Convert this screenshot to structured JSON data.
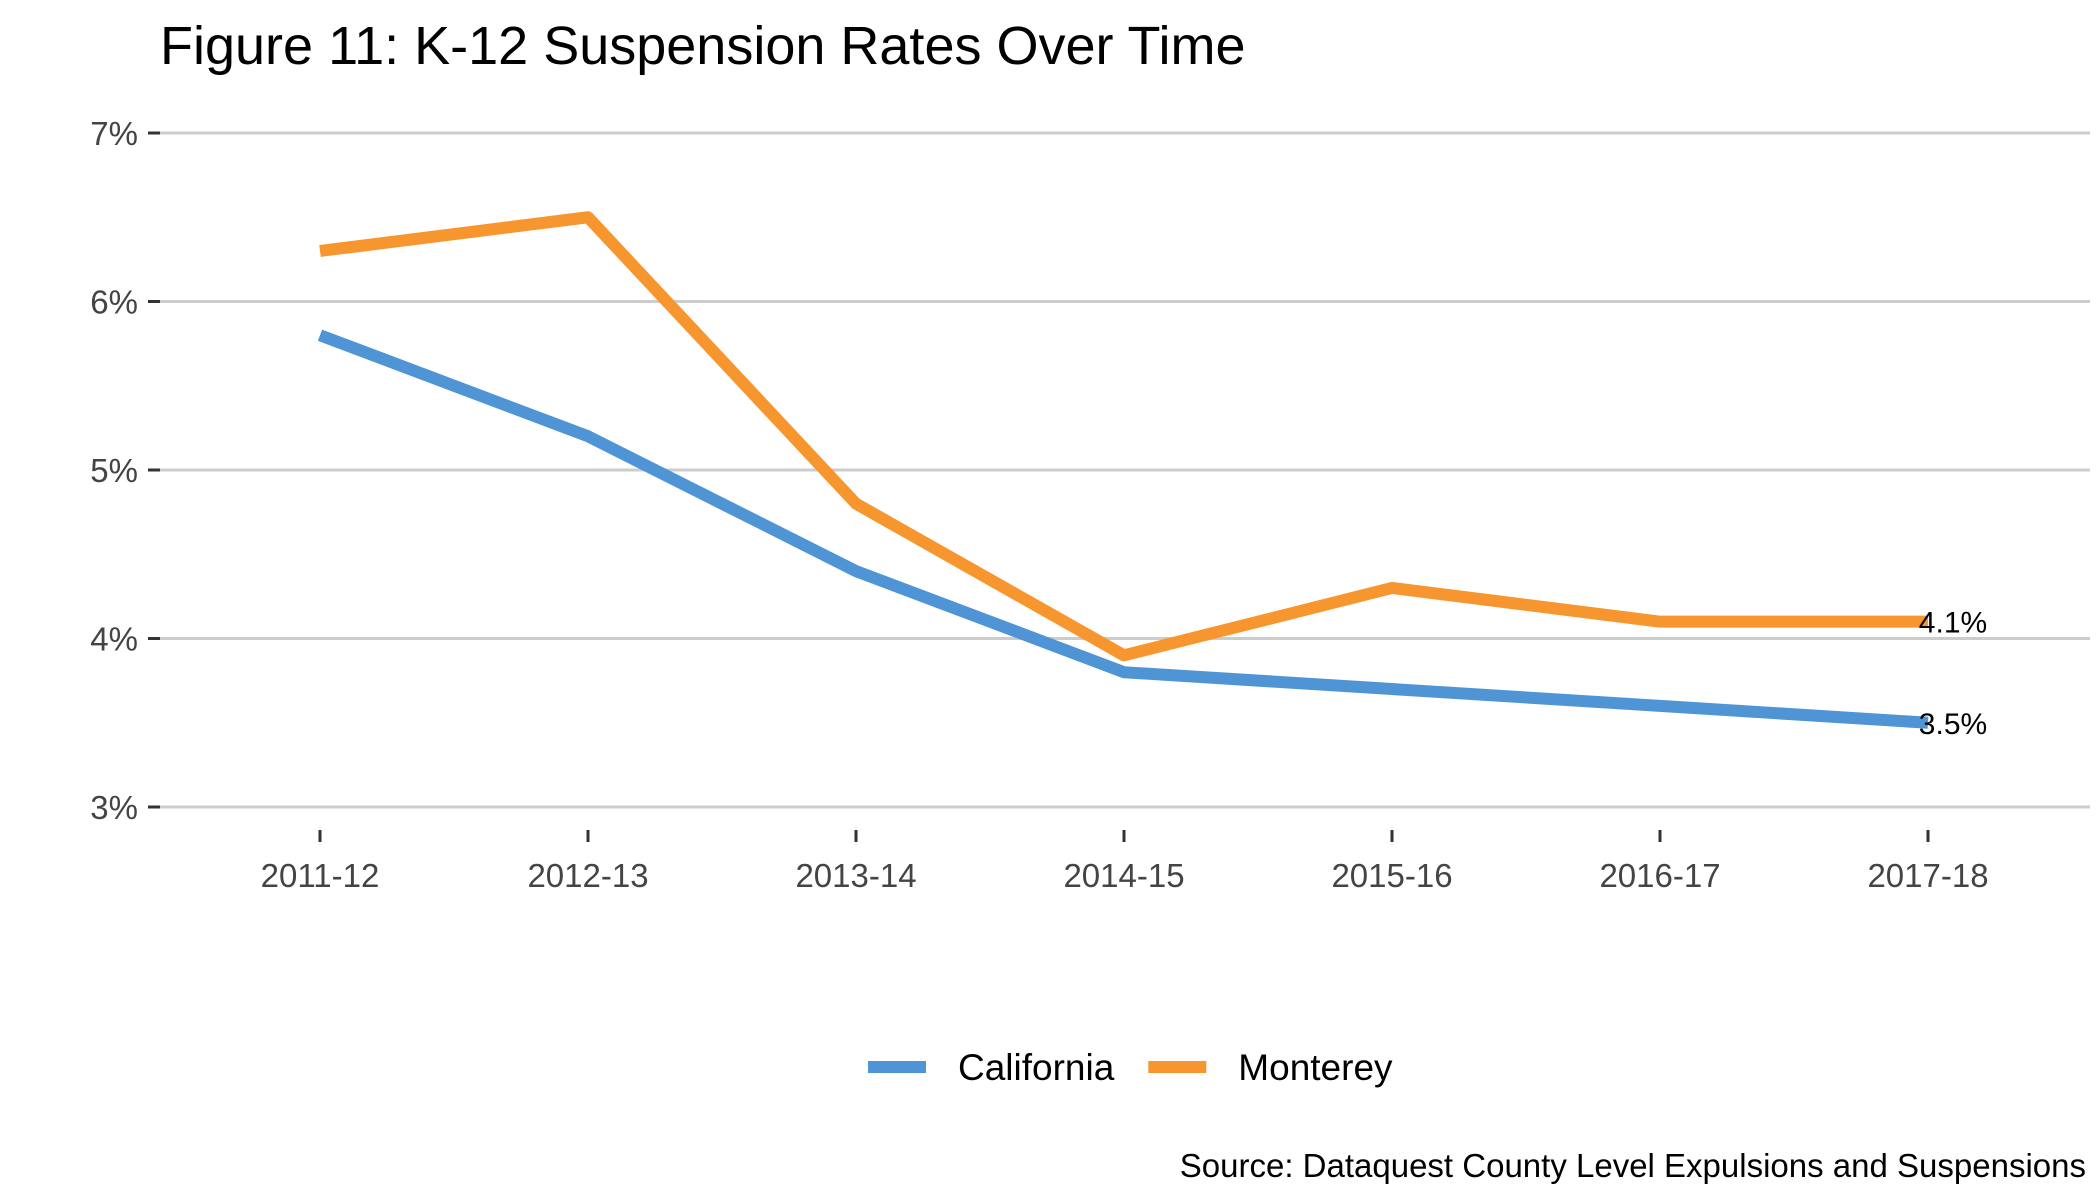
{
  "chart_data": {
    "type": "line",
    "title": "Figure 11: K-12 Suspension Rates Over Time",
    "caption": "Source: Dataquest County Level Expulsions and Suspensions",
    "xlabel": "",
    "ylabel": "",
    "categories": [
      "2011-12",
      "2012-13",
      "2013-14",
      "2014-15",
      "2015-16",
      "2016-17",
      "2017-18"
    ],
    "y_ticks": [
      3,
      4,
      5,
      6,
      7
    ],
    "y_tick_labels": [
      "3%",
      "4%",
      "5%",
      "6%",
      "7%"
    ],
    "ylim": [
      3,
      7
    ],
    "grid": "horizontal",
    "legend_position": "bottom",
    "series": [
      {
        "name": "California",
        "color": "#4F94D4",
        "values": [
          5.8,
          5.2,
          4.4,
          3.8,
          3.7,
          3.6,
          3.5
        ],
        "end_label": "3.5%"
      },
      {
        "name": "Monterey",
        "color": "#F7962F",
        "values": [
          6.3,
          6.5,
          4.8,
          3.9,
          4.3,
          4.1,
          4.1
        ],
        "end_label": "4.1%"
      }
    ]
  }
}
